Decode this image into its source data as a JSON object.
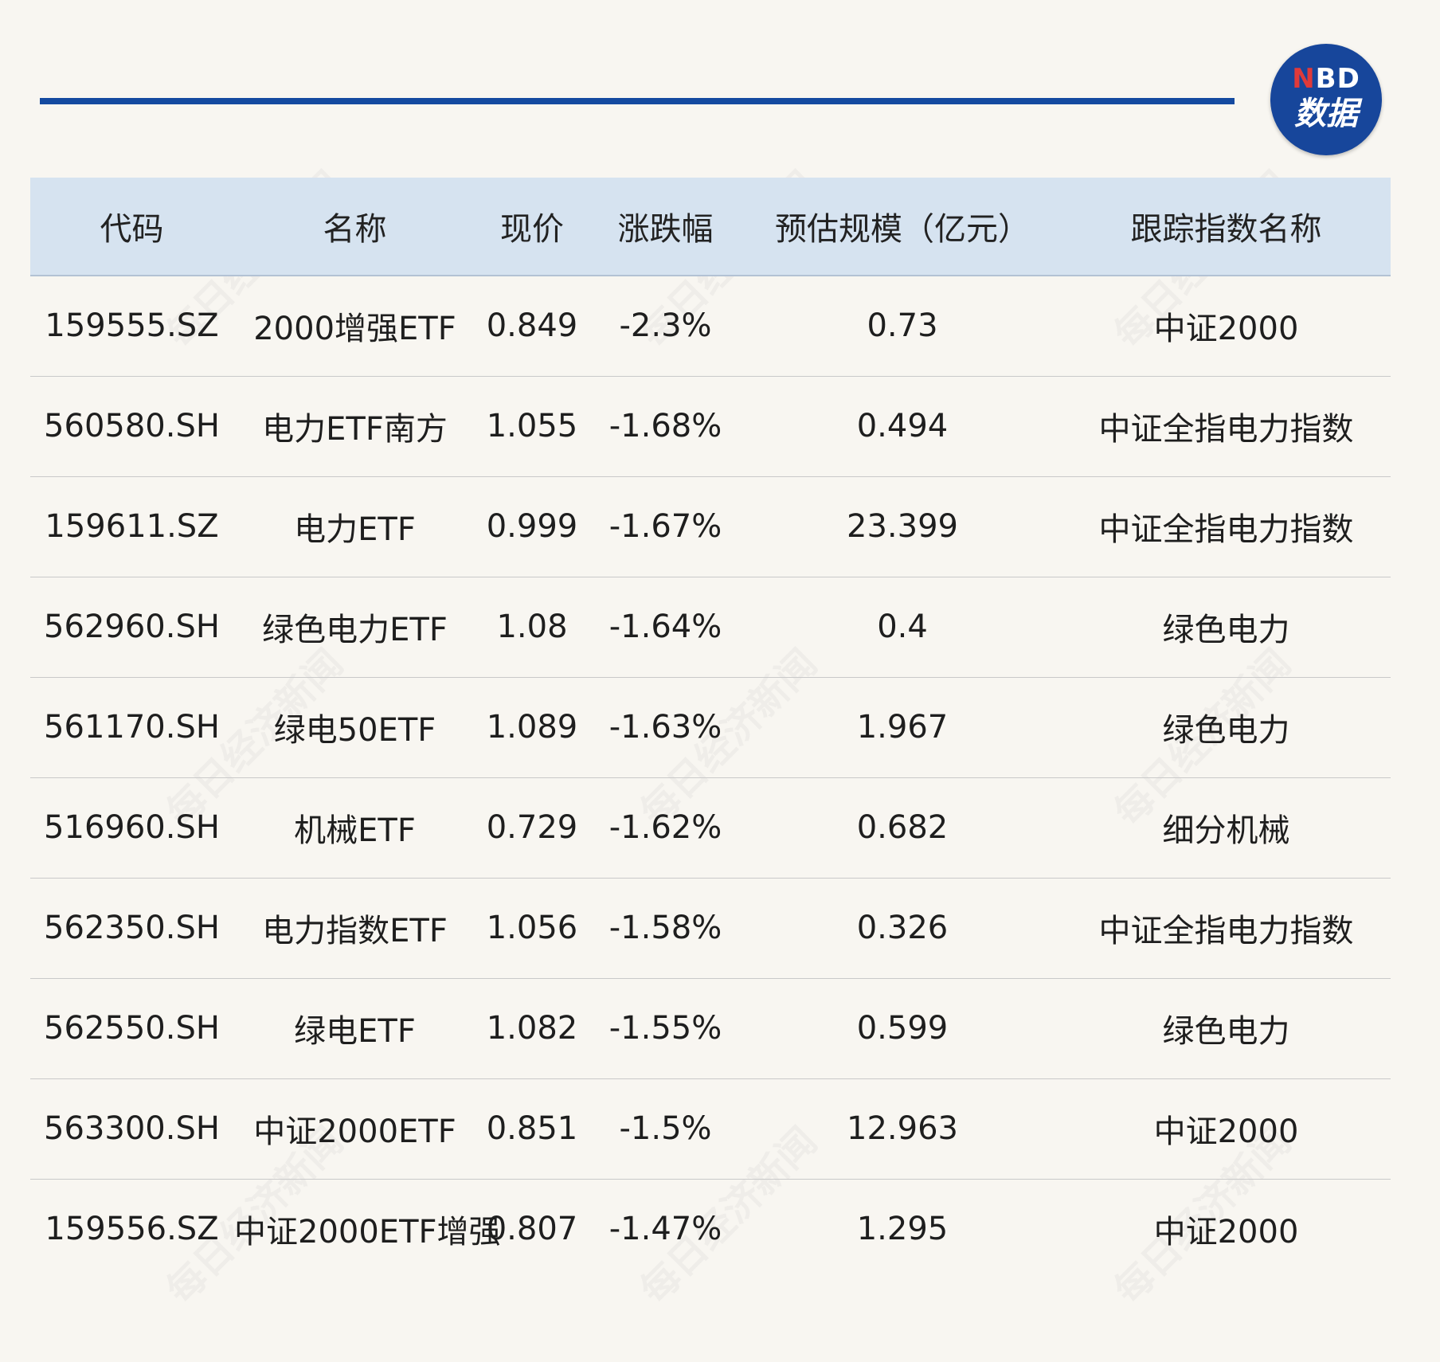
{
  "brand": {
    "top_n": "N",
    "top_rest": "BD",
    "bottom": "数据",
    "watermark": "每日经济新闻",
    "color": "#17469b",
    "accent": "#e03a3a"
  },
  "chart_data": {
    "type": "table",
    "headers": [
      "代码",
      "名称",
      "现价",
      "涨跌幅",
      "预估规模（亿元）",
      "跟踪指数名称"
    ],
    "rows": [
      [
        "159555.SZ",
        "2000增强ETF",
        "0.849",
        "-2.3%",
        "0.73",
        "中证2000"
      ],
      [
        "560580.SH",
        "电力ETF南方",
        "1.055",
        "-1.68%",
        "0.494",
        "中证全指电力指数"
      ],
      [
        "159611.SZ",
        "电力ETF",
        "0.999",
        "-1.67%",
        "23.399",
        "中证全指电力指数"
      ],
      [
        "562960.SH",
        "绿色电力ETF",
        "1.08",
        "-1.64%",
        "0.4",
        "绿色电力"
      ],
      [
        "561170.SH",
        "绿电50ETF",
        "1.089",
        "-1.63%",
        "1.967",
        "绿色电力"
      ],
      [
        "516960.SH",
        "机械ETF",
        "0.729",
        "-1.62%",
        "0.682",
        "细分机械"
      ],
      [
        "562350.SH",
        "电力指数ETF",
        "1.056",
        "-1.58%",
        "0.326",
        "中证全指电力指数"
      ],
      [
        "562550.SH",
        "绿电ETF",
        "1.082",
        "-1.55%",
        "0.599",
        "绿色电力"
      ],
      [
        "563300.SH",
        "中证2000ETF",
        "0.851",
        "-1.5%",
        "12.963",
        "中证2000"
      ],
      [
        "159556.SZ",
        "中证2000ETF增强",
        "0.807",
        "-1.47%",
        "1.295",
        "中证2000"
      ]
    ]
  }
}
